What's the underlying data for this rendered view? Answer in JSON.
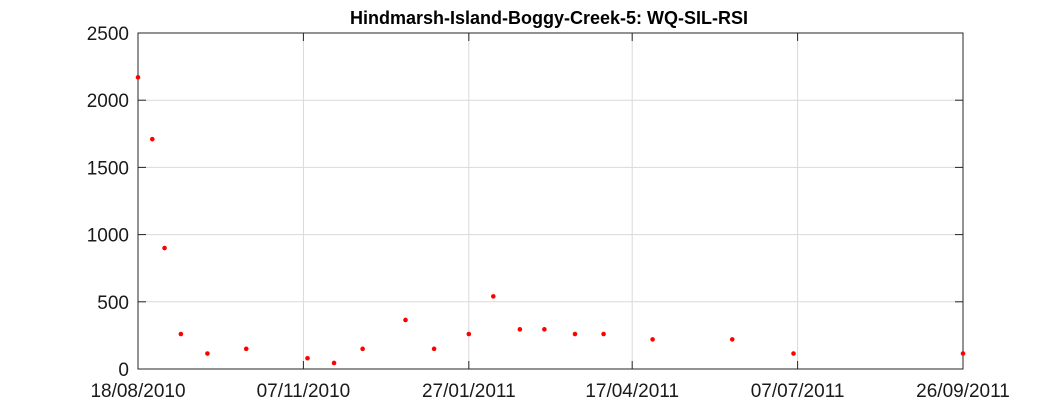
{
  "chart_data": {
    "type": "scatter",
    "title": "Hindmarsh-Island-Boggy-Creek-5: WQ-SIL-RSI",
    "xlabel": "",
    "ylabel": "",
    "x_type": "date",
    "xlim": [
      "2010-08-18",
      "2011-09-26"
    ],
    "ylim": [
      0,
      2500
    ],
    "x_ticks": [
      "2010-08-18",
      "2010-11-07",
      "2011-01-27",
      "2011-04-17",
      "2011-07-07",
      "2011-09-26"
    ],
    "x_tick_labels": [
      "18/08/2010",
      "07/11/2010",
      "27/01/2011",
      "17/04/2011",
      "07/07/2011",
      "26/09/2011"
    ],
    "y_ticks": [
      0,
      500,
      1000,
      1500,
      2000,
      2500
    ],
    "y_tick_labels": [
      "0",
      "500",
      "1000",
      "1500",
      "2000",
      "2500"
    ],
    "grid": true,
    "marker_color": "#ff0000",
    "series": [
      {
        "x": [
          "2010-08-18",
          "2010-08-25",
          "2010-08-31",
          "2010-09-08",
          "2010-09-21",
          "2010-10-10",
          "2010-11-09",
          "2010-11-22",
          "2010-12-06",
          "2010-12-27",
          "2011-01-10",
          "2011-01-27",
          "2011-02-08",
          "2011-02-21",
          "2011-03-05",
          "2011-03-20",
          "2011-04-03",
          "2011-04-27",
          "2011-06-05",
          "2011-07-05",
          "2011-09-26"
        ],
        "y": [
          2170,
          1710,
          900,
          260,
          115,
          150,
          80,
          45,
          150,
          365,
          150,
          260,
          540,
          295,
          295,
          260,
          260,
          220,
          220,
          115,
          115
        ]
      }
    ]
  }
}
